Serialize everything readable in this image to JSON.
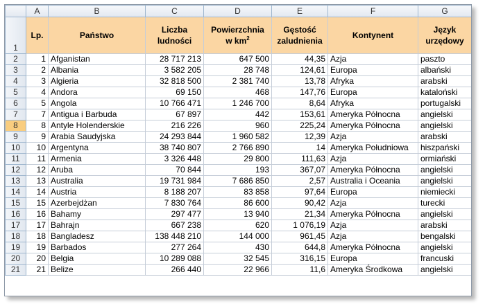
{
  "columns": [
    "A",
    "B",
    "C",
    "D",
    "E",
    "F",
    "G"
  ],
  "header_row_number": "1",
  "headers": {
    "lp": "Lp.",
    "panstwo": "Państwo",
    "ludnosc_line1": "Liczba",
    "ludnosc_line2": "ludności",
    "powierzchnia_line1": "Powierzchnia",
    "powierzchnia_line2": "w km",
    "powierzchnia_sup": "2",
    "gestosc_line1": "Gęstość",
    "gestosc_line2": "zaludnienia",
    "kontynent": "Kontynent",
    "jezyk_line1": "Język",
    "jezyk_line2": "urzędowy"
  },
  "selected_row": "8",
  "header_fill_color": "#fbd6a3",
  "selected_row_header_color": "#f9cd7f",
  "rows": [
    {
      "row": "2",
      "lp": "1",
      "panstwo": "Afganistan",
      "ludnosc": "28 717 213",
      "powierzchnia": "647 500",
      "gestosc": "44,35",
      "kontynent": "Azja",
      "jezyk": "paszto"
    },
    {
      "row": "3",
      "lp": "2",
      "panstwo": "Albania",
      "ludnosc": "3 582 205",
      "powierzchnia": "28 748",
      "gestosc": "124,61",
      "kontynent": "Europa",
      "jezyk": "albański"
    },
    {
      "row": "4",
      "lp": "3",
      "panstwo": "Algieria",
      "ludnosc": "32 818 500",
      "powierzchnia": "2 381 740",
      "gestosc": "13,78",
      "kontynent": "Afryka",
      "jezyk": "arabski"
    },
    {
      "row": "5",
      "lp": "4",
      "panstwo": "Andora",
      "ludnosc": "69 150",
      "powierzchnia": "468",
      "gestosc": "147,76",
      "kontynent": "Europa",
      "jezyk": "kataloński"
    },
    {
      "row": "6",
      "lp": "5",
      "panstwo": "Angola",
      "ludnosc": "10 766 471",
      "powierzchnia": "1 246 700",
      "gestosc": "8,64",
      "kontynent": "Afryka",
      "jezyk": "portugalski"
    },
    {
      "row": "7",
      "lp": "7",
      "panstwo": "Antigua i Barbuda",
      "ludnosc": "67 897",
      "powierzchnia": "442",
      "gestosc": "153,61",
      "kontynent": "Ameryka Północna",
      "jezyk": "angielski"
    },
    {
      "row": "8",
      "lp": "8",
      "panstwo": "Antyle Holenderskie",
      "ludnosc": "216 226",
      "powierzchnia": "960",
      "gestosc": "225,24",
      "kontynent": "Ameryka Północna",
      "jezyk": "angielski"
    },
    {
      "row": "9",
      "lp": "9",
      "panstwo": "Arabia Saudyjska",
      "ludnosc": "24 293 844",
      "powierzchnia": "1 960 582",
      "gestosc": "12,39",
      "kontynent": "Azja",
      "jezyk": "arabski"
    },
    {
      "row": "10",
      "lp": "10",
      "panstwo": "Argentyna",
      "ludnosc": "38 740 807",
      "powierzchnia": "2 766 890",
      "gestosc": "14",
      "kontynent": "Ameryka Południowa",
      "jezyk": "hiszpański"
    },
    {
      "row": "11",
      "lp": "11",
      "panstwo": "Armenia",
      "ludnosc": "3 326 448",
      "powierzchnia": "29 800",
      "gestosc": "111,63",
      "kontynent": "Azja",
      "jezyk": "ormiański"
    },
    {
      "row": "12",
      "lp": "12",
      "panstwo": "Aruba",
      "ludnosc": "70 844",
      "powierzchnia": "193",
      "gestosc": "367,07",
      "kontynent": "Ameryka Północna",
      "jezyk": "angielski"
    },
    {
      "row": "13",
      "lp": "13",
      "panstwo": "Australia",
      "ludnosc": "19 731 984",
      "powierzchnia": "7 686 850",
      "gestosc": "2,57",
      "kontynent": "Australia i Oceania",
      "jezyk": "angielski"
    },
    {
      "row": "14",
      "lp": "14",
      "panstwo": "Austria",
      "ludnosc": "8 188 207",
      "powierzchnia": "83 858",
      "gestosc": "97,64",
      "kontynent": "Europa",
      "jezyk": "niemiecki"
    },
    {
      "row": "15",
      "lp": "15",
      "panstwo": "Azerbejdżan",
      "ludnosc": "7 830 764",
      "powierzchnia": "86 600",
      "gestosc": "90,42",
      "kontynent": "Azja",
      "jezyk": "turecki"
    },
    {
      "row": "16",
      "lp": "16",
      "panstwo": "Bahamy",
      "ludnosc": "297 477",
      "powierzchnia": "13 940",
      "gestosc": "21,34",
      "kontynent": "Ameryka Północna",
      "jezyk": "angielski"
    },
    {
      "row": "17",
      "lp": "17",
      "panstwo": "Bahrajn",
      "ludnosc": "667 238",
      "powierzchnia": "620",
      "gestosc": "1 076,19",
      "kontynent": "Azja",
      "jezyk": "arabski"
    },
    {
      "row": "18",
      "lp": "18",
      "panstwo": "Bangladesz",
      "ludnosc": "138 448 210",
      "powierzchnia": "144 000",
      "gestosc": "961,45",
      "kontynent": "Azja",
      "jezyk": "bengalski"
    },
    {
      "row": "19",
      "lp": "19",
      "panstwo": "Barbados",
      "ludnosc": "277 264",
      "powierzchnia": "430",
      "gestosc": "644,8",
      "kontynent": "Ameryka Północna",
      "jezyk": "angielski"
    },
    {
      "row": "20",
      "lp": "20",
      "panstwo": "Belgia",
      "ludnosc": "10 289 088",
      "powierzchnia": "32 545",
      "gestosc": "316,15",
      "kontynent": "Europa",
      "jezyk": "francuski"
    },
    {
      "row": "21",
      "lp": "21",
      "panstwo": "Belize",
      "ludnosc": "266 440",
      "powierzchnia": "22 966",
      "gestosc": "11,6",
      "kontynent": "Ameryka Środkowa",
      "jezyk": "angielski"
    }
  ]
}
